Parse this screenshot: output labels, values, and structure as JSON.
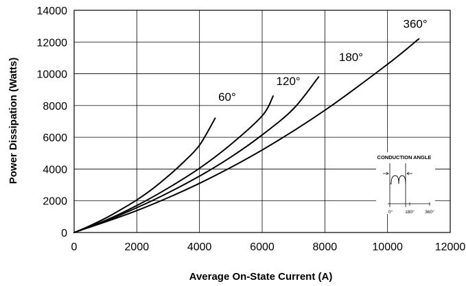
{
  "chart_data": {
    "type": "line",
    "title": "",
    "xlabel": "Average On-State Current   (A)",
    "ylabel": "Power Dissipation   (Watts)",
    "xlim": [
      0,
      12000
    ],
    "ylim": [
      0,
      14000
    ],
    "xticks": [
      "0",
      "2000",
      "4000",
      "6000",
      "8000",
      "10000",
      "12000"
    ],
    "yticks": [
      "0",
      "2000",
      "4000",
      "6000",
      "8000",
      "10000",
      "12000",
      "14000"
    ],
    "grid": true,
    "series": [
      {
        "name": "60°",
        "x": [
          0,
          500,
          1000,
          1500,
          2000,
          2500,
          3000,
          3500,
          4000,
          4500
        ],
        "y": [
          0,
          420,
          900,
          1450,
          2050,
          2750,
          3550,
          4450,
          5500,
          7200
        ]
      },
      {
        "name": "120°",
        "x": [
          0,
          1000,
          2000,
          3000,
          4000,
          5000,
          6000,
          6350
        ],
        "y": [
          0,
          760,
          1700,
          2800,
          4050,
          5550,
          7350,
          8600
        ]
      },
      {
        "name": "",
        "x": [
          0,
          1000,
          2000,
          3000,
          4000,
          5000,
          6000,
          7000,
          7800
        ],
        "y": [
          0,
          720,
          1560,
          2500,
          3550,
          4750,
          6150,
          7800,
          9800
        ]
      },
      {
        "name": "180°",
        "x": [
          0,
          2000,
          4000,
          6000,
          8000,
          10000,
          11000
        ],
        "y": [
          0,
          1380,
          3100,
          5200,
          7700,
          10600,
          12200
        ]
      }
    ],
    "curve_labels": [
      {
        "text": "60°",
        "x": 4600,
        "y": 8300
      },
      {
        "text": "120°",
        "x": 6450,
        "y": 9300
      },
      {
        "text": "180°",
        "x": 8450,
        "y": 10800
      },
      {
        "text": "360°",
        "x": 10500,
        "y": 12900
      }
    ]
  },
  "inset": {
    "title": "CONDUCTION ANGLE",
    "ticks": [
      "0°",
      "180°",
      "360°"
    ]
  }
}
